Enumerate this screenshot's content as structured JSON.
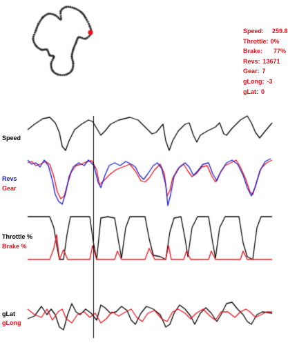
{
  "colors": {
    "background": "#ffffff",
    "black_trace": "#000000",
    "red_trace": "#e8101a",
    "blue_trace": "#1a1ad0",
    "track_dot": "#333333",
    "car_marker": "#e8101a",
    "cursor": "#000000"
  },
  "readout": {
    "speed_label": "Speed:",
    "speed_value": "259.8",
    "throttle_label": "Throttle:",
    "throttle_value": "0%",
    "brake_label": "Brake:",
    "brake_value": "77%",
    "revs_label": "Revs:",
    "revs_value": "13671",
    "gear_label": "Gear:",
    "gear_value": "7",
    "glong_label": "gLong:",
    "glong_value": "-3",
    "glat_label": "gLat:",
    "glat_value": "0"
  },
  "panels": {
    "speed": {
      "label": "Speed"
    },
    "revs_gear": {
      "label_a": "Revs",
      "label_b": "Gear"
    },
    "throttle_brake": {
      "label_a": "Throttle %",
      "label_b": "Brake %"
    },
    "glat_glong": {
      "label_a": "gLat",
      "label_b": "gLong"
    }
  },
  "icons": {
    "track_map": "track-map-dotted-circuit",
    "car_marker": "red-dot-position-marker",
    "cursor": "vertical-time-cursor-line"
  }
}
